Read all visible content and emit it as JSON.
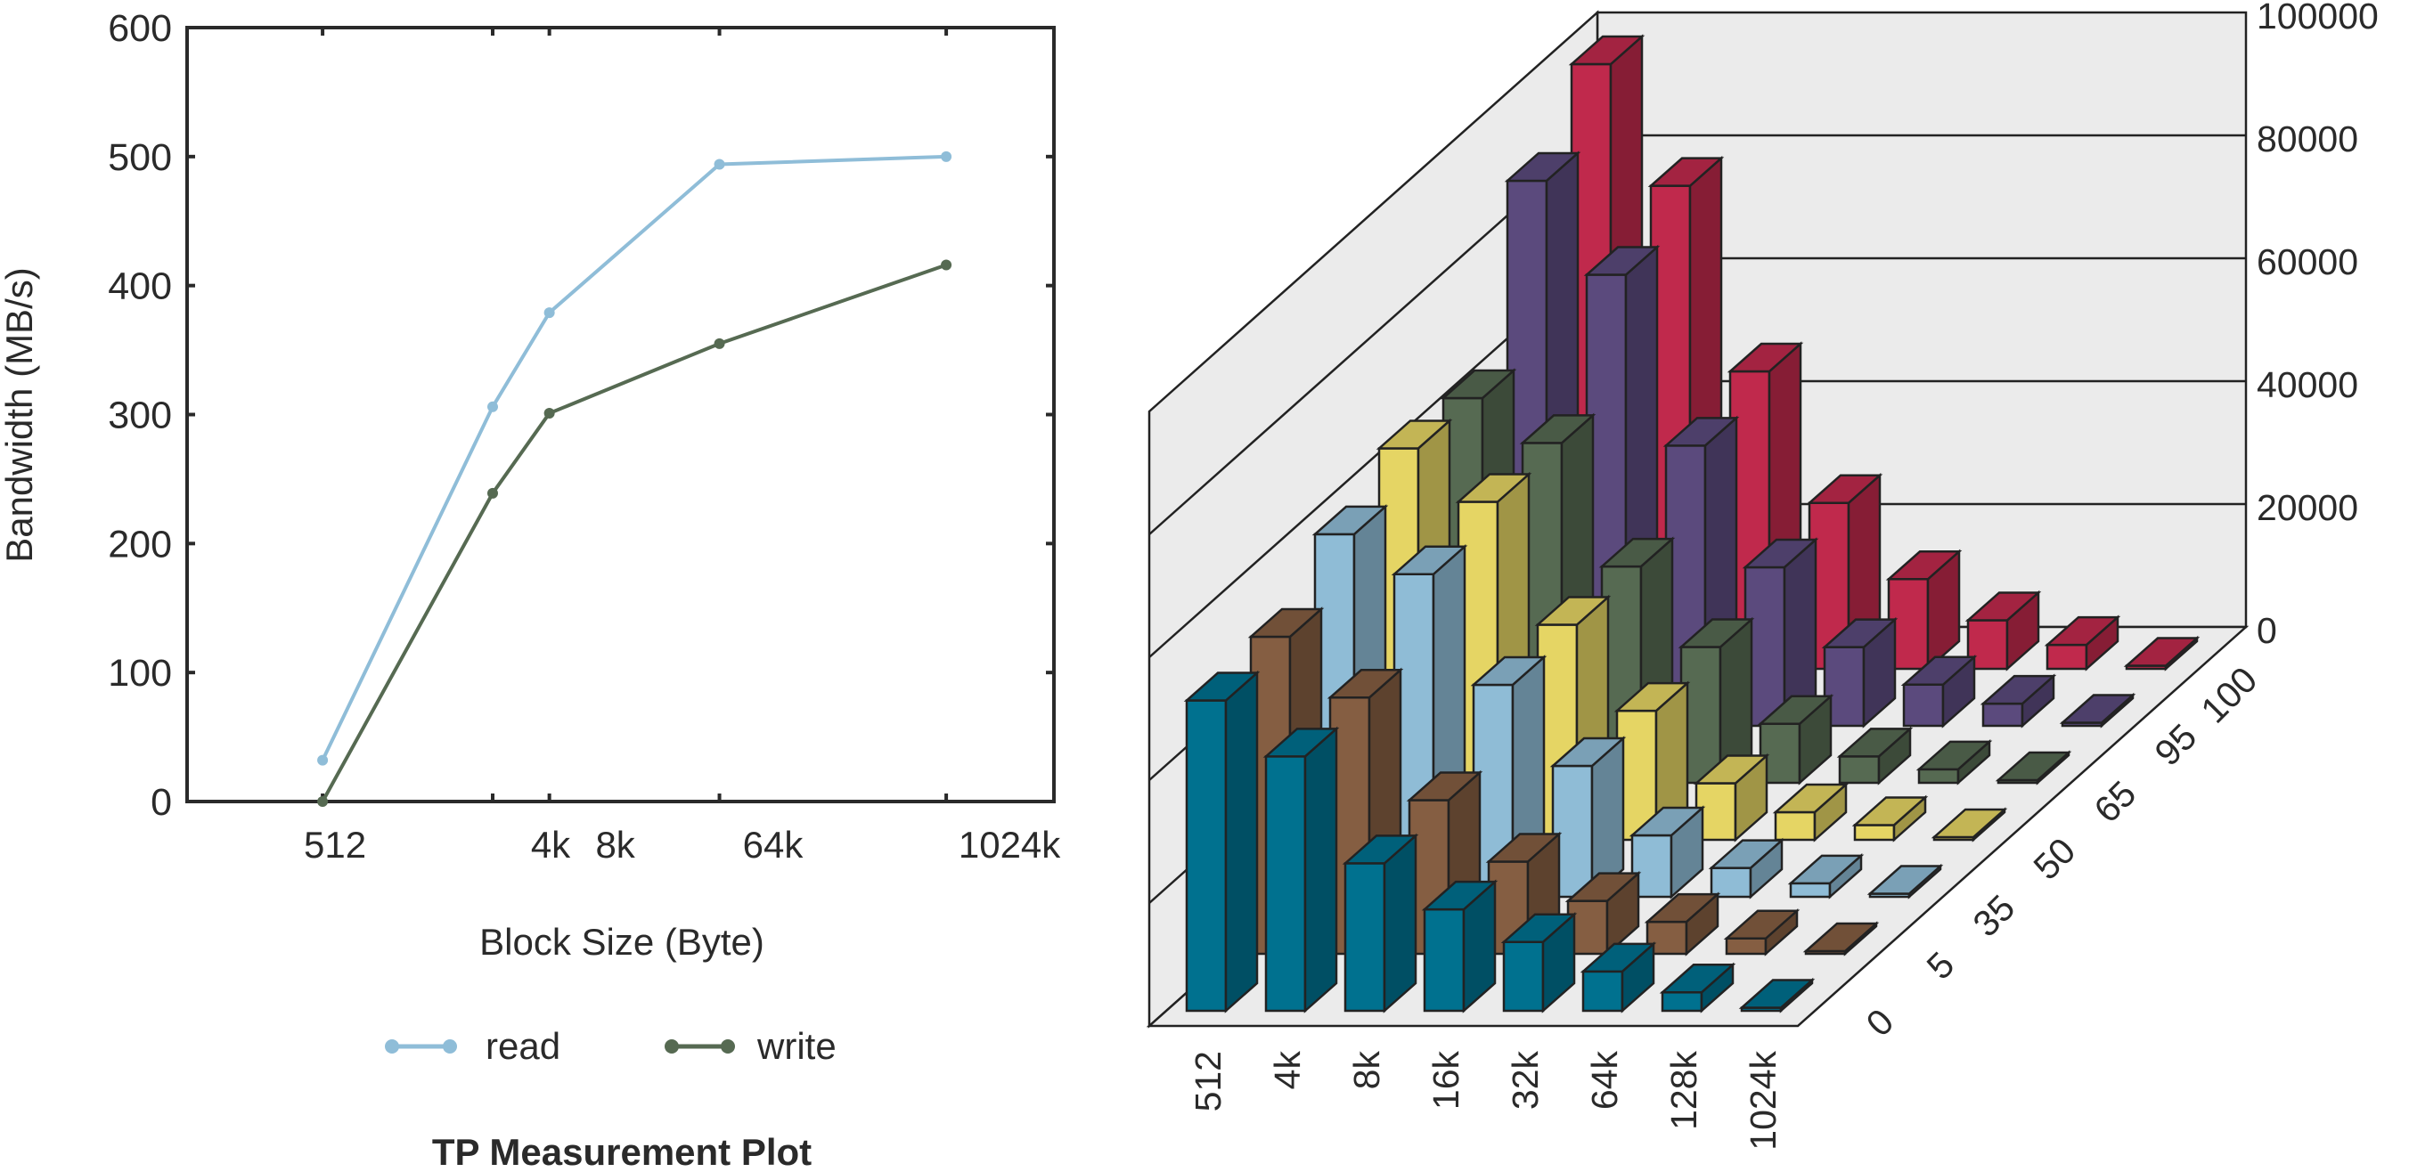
{
  "chart_data": [
    {
      "type": "line",
      "title": "TP Measurement Plot",
      "xlabel": "Block Size (Byte)",
      "ylabel": "Bandwidth (MB/s)",
      "x_scale": "log2",
      "x_bytes": [
        512,
        4096,
        8192,
        65536,
        1048576
      ],
      "x_tick_labels": [
        "512",
        "4k",
        "8k",
        "64k",
        "1024k"
      ],
      "ylim": [
        0,
        600
      ],
      "y_ticks": [
        0,
        100,
        200,
        300,
        400,
        500,
        600
      ],
      "grid": false,
      "legend_placement": "bottom",
      "series": [
        {
          "name": "read",
          "color": "#8fbdd8",
          "values": [
            32,
            306,
            379,
            494,
            500
          ]
        },
        {
          "name": "write",
          "color": "#566a52",
          "values": [
            0,
            239,
            301,
            355,
            416
          ]
        }
      ]
    },
    {
      "type": "bar3d",
      "categories": [
        "512",
        "4k",
        "8k",
        "16k",
        "32k",
        "64k",
        "128k",
        "1024k"
      ],
      "depth_labels": [
        "0",
        "5",
        "35",
        "50",
        "65",
        "95",
        "100"
      ],
      "zlim": [
        0,
        100000
      ],
      "z_ticks": [
        0,
        20000,
        40000,
        60000,
        80000,
        100000
      ],
      "series": [
        {
          "name": "0",
          "color": "#00718f",
          "values": [
            50500,
            41400,
            24000,
            16500,
            11200,
            6400,
            3000,
            500
          ]
        },
        {
          "name": "5",
          "color": "#855e42",
          "values": [
            51600,
            41700,
            25000,
            15000,
            8600,
            5200,
            2500,
            300
          ]
        },
        {
          "name": "35",
          "color": "#8fbcd6",
          "values": [
            59000,
            52500,
            34500,
            21300,
            10000,
            4700,
            2200,
            500
          ]
        },
        {
          "name": "50",
          "color": "#e5d564",
          "values": [
            63700,
            55000,
            35000,
            21000,
            9200,
            4500,
            2400,
            300
          ]
        },
        {
          "name": "65",
          "color": "#566a52",
          "values": [
            62600,
            55300,
            35200,
            22100,
            9600,
            4300,
            2200,
            300
          ]
        },
        {
          "name": "95",
          "color": "#5b4a7d",
          "values": [
            88700,
            73400,
            45600,
            25800,
            12800,
            6700,
            3600,
            500
          ]
        },
        {
          "name": "100",
          "color": "#c0294c",
          "values": [
            98400,
            78600,
            48400,
            27000,
            14600,
            7900,
            3900,
            500
          ]
        }
      ]
    }
  ]
}
